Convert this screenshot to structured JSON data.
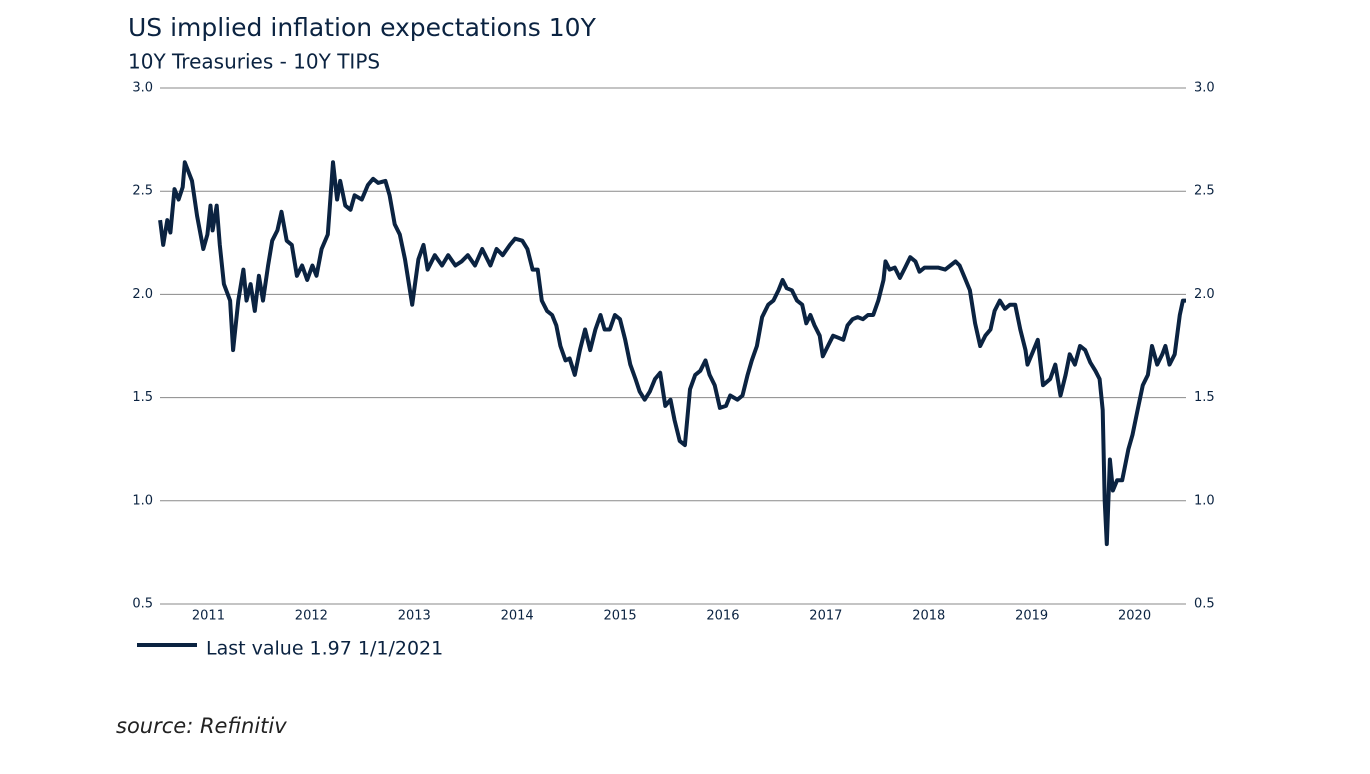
{
  "chart_data": {
    "type": "line",
    "title": "US implied inflation expectations 10Y",
    "subtitle": "10Y Treasuries - 10Y TIPS",
    "source": "source: Refinitiv",
    "xlim": [
      2011,
      2021
    ],
    "xticks": [
      {
        "value": 2011.5,
        "label": "2011"
      },
      {
        "value": 2012.5,
        "label": "2012"
      },
      {
        "value": 2013.5,
        "label": "2013"
      },
      {
        "value": 2014.5,
        "label": "2014"
      },
      {
        "value": 2015.5,
        "label": "2015"
      },
      {
        "value": 2016.5,
        "label": "2016"
      },
      {
        "value": 2017.5,
        "label": "2017"
      },
      {
        "value": 2018.5,
        "label": "2018"
      },
      {
        "value": 2019.5,
        "label": "2019"
      },
      {
        "value": 2020.5,
        "label": "2020"
      }
    ],
    "ylim": [
      0.5,
      3.0
    ],
    "yticks": [
      {
        "value": 0.5,
        "label": "0.5"
      },
      {
        "value": 1.0,
        "label": "1.0"
      },
      {
        "value": 1.5,
        "label": "1.5"
      },
      {
        "value": 2.0,
        "label": "2.0"
      },
      {
        "value": 2.5,
        "label": "2.5"
      },
      {
        "value": 3.0,
        "label": "3.0"
      }
    ],
    "y2lim": [
      0.5,
      3.0
    ],
    "y2ticks": [
      {
        "value": 0.5,
        "label": "0.5"
      },
      {
        "value": 1.0,
        "label": "1.0"
      },
      {
        "value": 1.5,
        "label": "1.5"
      },
      {
        "value": 2.0,
        "label": "2.0"
      },
      {
        "value": 2.5,
        "label": "2.5"
      },
      {
        "value": 3.0,
        "label": "3.0"
      }
    ],
    "grid": true,
    "x": [
      2011.03,
      2011.06,
      2011.1,
      2011.13,
      2011.17,
      2011.21,
      2011.25,
      2011.27,
      2011.34,
      2011.39,
      2011.45,
      2011.49,
      2011.52,
      2011.54,
      2011.58,
      2011.61,
      2011.65,
      2011.71,
      2011.74,
      2011.79,
      2011.84,
      2011.87,
      2011.91,
      2011.95,
      2011.99,
      2012.03,
      2012.08,
      2012.12,
      2012.17,
      2012.21,
      2012.26,
      2012.31,
      2012.36,
      2012.41,
      2012.46,
      2012.51,
      2012.55,
      2012.6,
      2012.66,
      2012.71,
      2012.75,
      2012.78,
      2012.83,
      2012.88,
      2012.92,
      2012.99,
      2013.05,
      2013.1,
      2013.15,
      2013.22,
      2013.26,
      2013.31,
      2013.36,
      2013.41,
      2013.48,
      2013.54,
      2013.59,
      2013.63,
      2013.7,
      2013.77,
      2013.83,
      2013.9,
      2013.96,
      2014.02,
      2014.09,
      2014.16,
      2014.24,
      2014.3,
      2014.36,
      2014.43,
      2014.48,
      2014.55,
      2014.6,
      2014.65,
      2014.7,
      2014.74,
      2014.79,
      2014.84,
      2014.88,
      2014.92,
      2014.97,
      2015.01,
      2015.06,
      2015.11,
      2015.16,
      2015.21,
      2015.26,
      2015.31,
      2015.35,
      2015.4,
      2015.45,
      2015.5,
      2015.55,
      2015.6,
      2015.65,
      2015.69,
      2015.74,
      2015.79,
      2015.84,
      2015.89,
      2015.94,
      2015.99,
      2016.03,
      2016.08,
      2016.13,
      2016.18,
      2016.23,
      2016.28,
      2016.33,
      2016.37,
      2016.42,
      2016.47,
      2016.53,
      2016.57,
      2016.64,
      2016.69,
      2016.74,
      2016.78,
      2016.83,
      2016.88,
      2016.94,
      2016.99,
      2017.04,
      2017.08,
      2017.12,
      2017.17,
      2017.22,
      2017.27,
      2017.31,
      2017.35,
      2017.39,
      2017.44,
      2017.47,
      2017.52,
      2017.57,
      2017.62,
      2017.67,
      2017.71,
      2017.76,
      2017.81,
      2017.86,
      2017.91,
      2017.96,
      2018.01,
      2018.06,
      2018.08,
      2018.12,
      2018.17,
      2018.22,
      2018.27,
      2018.32,
      2018.37,
      2018.41,
      2018.46,
      2018.51,
      2018.59,
      2018.66,
      2018.71,
      2018.76,
      2018.8,
      2018.85,
      2018.9,
      2018.95,
      2019.0,
      2019.05,
      2019.1,
      2019.14,
      2019.19,
      2019.24,
      2019.29,
      2019.34,
      2019.39,
      2019.44,
      2019.46,
      2019.51,
      2019.56,
      2019.61,
      2019.68,
      2019.73,
      2019.78,
      2019.83,
      2019.87,
      2019.92,
      2019.97,
      2020.02,
      2020.07,
      2020.12,
      2020.16,
      2020.19,
      2020.21,
      2020.23,
      2020.26,
      2020.29,
      2020.33,
      2020.38,
      2020.44,
      2020.48,
      2020.53,
      2020.58,
      2020.63,
      2020.67,
      2020.72,
      2020.77,
      2020.8,
      2020.84,
      2020.89,
      2020.94,
      2020.97,
      2021.0
    ],
    "series": [
      {
        "name": "Last value 1.97 1/1/2021",
        "color": "#0b2341",
        "values": [
          2.36,
          2.24,
          2.36,
          2.3,
          2.51,
          2.46,
          2.52,
          2.64,
          2.55,
          2.38,
          2.22,
          2.29,
          2.43,
          2.31,
          2.43,
          2.24,
          2.05,
          1.97,
          1.73,
          1.97,
          2.12,
          1.97,
          2.05,
          1.92,
          2.09,
          1.97,
          2.14,
          2.26,
          2.31,
          2.4,
          2.26,
          2.24,
          2.09,
          2.14,
          2.07,
          2.14,
          2.09,
          2.22,
          2.29,
          2.64,
          2.46,
          2.55,
          2.43,
          2.41,
          2.48,
          2.46,
          2.53,
          2.56,
          2.54,
          2.55,
          2.48,
          2.34,
          2.29,
          2.17,
          1.95,
          2.17,
          2.24,
          2.12,
          2.19,
          2.14,
          2.19,
          2.14,
          2.16,
          2.19,
          2.14,
          2.22,
          2.14,
          2.22,
          2.19,
          2.24,
          2.27,
          2.26,
          2.22,
          2.12,
          2.12,
          1.97,
          1.92,
          1.9,
          1.85,
          1.75,
          1.68,
          1.69,
          1.61,
          1.73,
          1.83,
          1.73,
          1.83,
          1.9,
          1.83,
          1.83,
          1.9,
          1.88,
          1.78,
          1.66,
          1.59,
          1.53,
          1.49,
          1.53,
          1.59,
          1.62,
          1.46,
          1.49,
          1.39,
          1.29,
          1.27,
          1.54,
          1.61,
          1.63,
          1.68,
          1.61,
          1.56,
          1.45,
          1.46,
          1.51,
          1.49,
          1.51,
          1.61,
          1.68,
          1.75,
          1.89,
          1.95,
          1.97,
          2.02,
          2.07,
          2.03,
          2.02,
          1.97,
          1.95,
          1.86,
          1.9,
          1.85,
          1.8,
          1.7,
          1.75,
          1.8,
          1.79,
          1.78,
          1.85,
          1.88,
          1.89,
          1.88,
          1.9,
          1.9,
          1.97,
          2.07,
          2.16,
          2.12,
          2.13,
          2.08,
          2.13,
          2.18,
          2.16,
          2.11,
          2.13,
          2.13,
          2.13,
          2.12,
          2.14,
          2.16,
          2.14,
          2.08,
          2.02,
          1.86,
          1.75,
          1.8,
          1.83,
          1.92,
          1.97,
          1.93,
          1.95,
          1.95,
          1.83,
          1.73,
          1.66,
          1.72,
          1.78,
          1.56,
          1.59,
          1.66,
          1.51,
          1.61,
          1.71,
          1.66,
          1.75,
          1.73,
          1.67,
          1.63,
          1.59,
          1.44,
          1.0,
          0.79,
          1.2,
          1.05,
          1.1,
          1.1,
          1.25,
          1.32,
          1.44,
          1.56,
          1.61,
          1.75,
          1.66,
          1.71,
          1.75,
          1.66,
          1.71,
          1.9,
          1.97,
          1.97
        ]
      }
    ]
  }
}
